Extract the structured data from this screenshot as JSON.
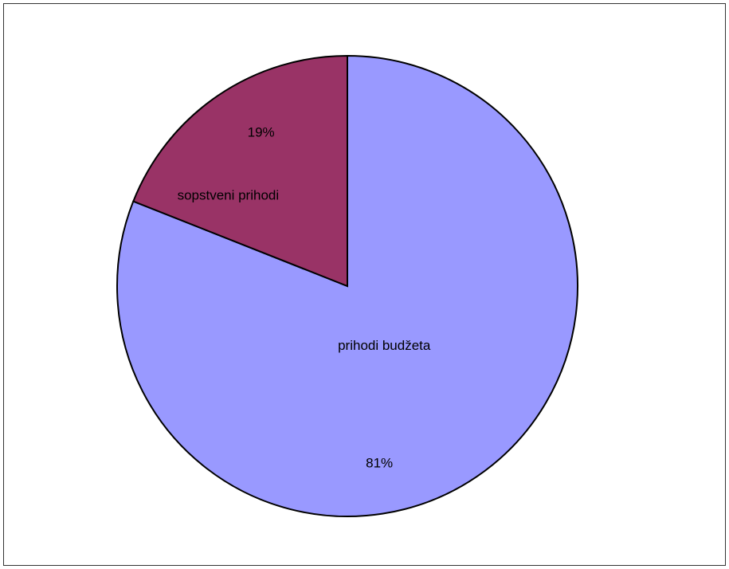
{
  "chart_data": {
    "type": "pie",
    "slices": [
      {
        "label": "prihodi budžeta",
        "value": 81,
        "percent_label": "81%",
        "color": "#9999ff"
      },
      {
        "label": "sopstveni  prihodi",
        "value": 19,
        "percent_label": "19%",
        "color": "#993366"
      }
    ],
    "start_angle_deg": 0,
    "direction": "clockwise",
    "slice_border_color": "#000000",
    "legend": "none"
  }
}
